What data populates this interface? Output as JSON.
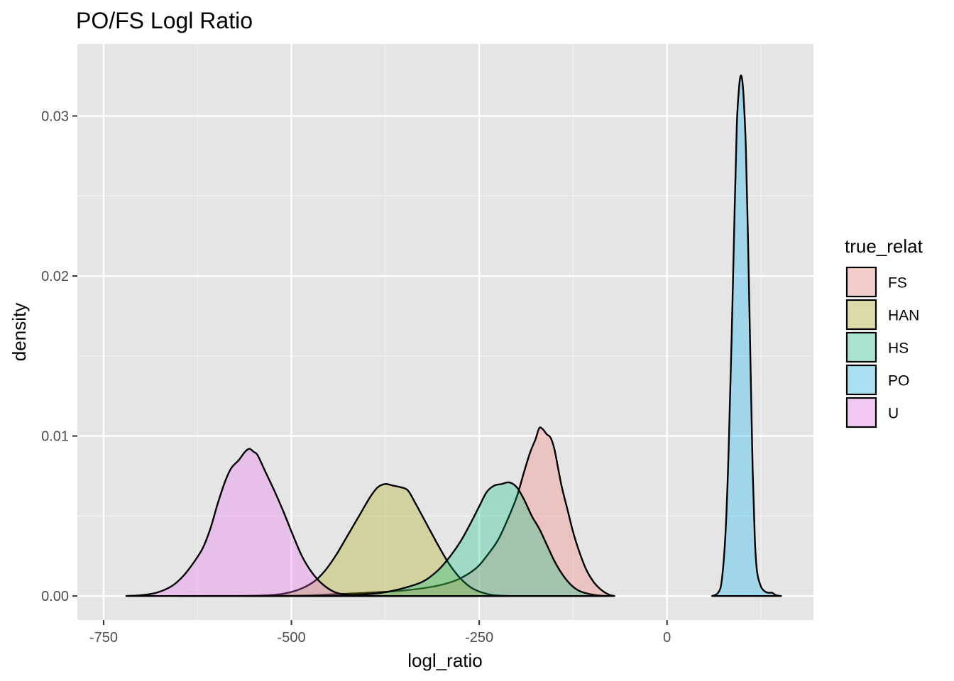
{
  "chart_data": {
    "type": "area",
    "title": "PO/FS Logl Ratio",
    "xlabel": "logl_ratio",
    "ylabel": "density",
    "xlim": [
      -785,
      195
    ],
    "ylim": [
      -0.0015,
      0.0345
    ],
    "x_ticks": [
      -750,
      -500,
      -250,
      0
    ],
    "x_tick_labels": [
      "-750",
      "-500",
      "-250",
      "0"
    ],
    "y_ticks": [
      0.0,
      0.01,
      0.02,
      0.03
    ],
    "y_tick_labels": [
      "0.00",
      "0.01",
      "0.02",
      "0.03"
    ],
    "grid": true,
    "legend": {
      "title": "true_relat",
      "position": "right"
    },
    "series": [
      {
        "name": "FS",
        "color": "#F8766D",
        "points": [
          [
            -650,
            0
          ],
          [
            -500,
            2e-05
          ],
          [
            -450,
            0.0001
          ],
          [
            -400,
            0.0002
          ],
          [
            -350,
            0.00035
          ],
          [
            -310,
            0.0006
          ],
          [
            -280,
            0.001
          ],
          [
            -255,
            0.0017
          ],
          [
            -240,
            0.0025
          ],
          [
            -225,
            0.0035
          ],
          [
            -212,
            0.0048
          ],
          [
            -200,
            0.0062
          ],
          [
            -190,
            0.0078
          ],
          [
            -182,
            0.009
          ],
          [
            -175,
            0.0098
          ],
          [
            -170,
            0.0105
          ],
          [
            -165,
            0.0104
          ],
          [
            -160,
            0.0101
          ],
          [
            -155,
            0.0099
          ],
          [
            -150,
            0.0092
          ],
          [
            -145,
            0.008
          ],
          [
            -140,
            0.0068
          ],
          [
            -133,
            0.0055
          ],
          [
            -125,
            0.004
          ],
          [
            -117,
            0.0028
          ],
          [
            -108,
            0.0017
          ],
          [
            -98,
            0.0009
          ],
          [
            -88,
            0.0004
          ],
          [
            -78,
            0.0001
          ],
          [
            -70,
            0
          ]
        ]
      },
      {
        "name": "HAN",
        "color": "#A3A500",
        "points": [
          [
            -560,
            0
          ],
          [
            -530,
            5e-05
          ],
          [
            -510,
            0.00015
          ],
          [
            -490,
            0.0004
          ],
          [
            -470,
            0.0009
          ],
          [
            -455,
            0.0016
          ],
          [
            -440,
            0.0026
          ],
          [
            -425,
            0.0038
          ],
          [
            -410,
            0.005
          ],
          [
            -395,
            0.0062
          ],
          [
            -385,
            0.0068
          ],
          [
            -375,
            0.007
          ],
          [
            -365,
            0.0069
          ],
          [
            -355,
            0.0068
          ],
          [
            -345,
            0.0066
          ],
          [
            -335,
            0.0058
          ],
          [
            -320,
            0.0045
          ],
          [
            -305,
            0.0032
          ],
          [
            -290,
            0.002
          ],
          [
            -275,
            0.0011
          ],
          [
            -260,
            0.0005
          ],
          [
            -245,
            0.0002
          ],
          [
            -230,
            5e-05
          ],
          [
            -210,
            0
          ]
        ]
      },
      {
        "name": "HS",
        "color": "#00BF7D",
        "points": [
          [
            -470,
            0
          ],
          [
            -420,
            5e-05
          ],
          [
            -380,
            0.0002
          ],
          [
            -350,
            0.0005
          ],
          [
            -325,
            0.0009
          ],
          [
            -305,
            0.0016
          ],
          [
            -290,
            0.0024
          ],
          [
            -275,
            0.0034
          ],
          [
            -262,
            0.0045
          ],
          [
            -250,
            0.0056
          ],
          [
            -240,
            0.0065
          ],
          [
            -230,
            0.0069
          ],
          [
            -220,
            0.007
          ],
          [
            -210,
            0.0071
          ],
          [
            -200,
            0.0068
          ],
          [
            -190,
            0.006
          ],
          [
            -180,
            0.005
          ],
          [
            -170,
            0.0042
          ],
          [
            -160,
            0.0032
          ],
          [
            -150,
            0.0022
          ],
          [
            -140,
            0.0014
          ],
          [
            -130,
            0.0008
          ],
          [
            -120,
            0.0004
          ],
          [
            -110,
            0.0002
          ],
          [
            -95,
            5e-05
          ],
          [
            -80,
            0
          ]
        ]
      },
      {
        "name": "PO",
        "color": "#00B0F6",
        "points": [
          [
            60,
            0
          ],
          [
            68,
            0.0002
          ],
          [
            73,
            0.001
          ],
          [
            78,
            0.004
          ],
          [
            82,
            0.009
          ],
          [
            86,
            0.016
          ],
          [
            90,
            0.024
          ],
          [
            93,
            0.0295
          ],
          [
            96,
            0.0318
          ],
          [
            98,
            0.0325
          ],
          [
            100,
            0.0323
          ],
          [
            102,
            0.0312
          ],
          [
            105,
            0.028
          ],
          [
            108,
            0.022
          ],
          [
            111,
            0.015
          ],
          [
            114,
            0.008
          ],
          [
            117,
            0.0035
          ],
          [
            120,
            0.0015
          ],
          [
            125,
            0.0006
          ],
          [
            130,
            0.0003
          ],
          [
            135,
            0.0002
          ],
          [
            140,
            0.0002
          ],
          [
            145,
            5e-05
          ],
          [
            152,
            0
          ]
        ]
      },
      {
        "name": "U",
        "color": "#E76BF3",
        "points": [
          [
            -720,
            0
          ],
          [
            -700,
            5e-05
          ],
          [
            -680,
            0.0002
          ],
          [
            -660,
            0.0006
          ],
          [
            -645,
            0.0012
          ],
          [
            -630,
            0.0021
          ],
          [
            -618,
            0.003
          ],
          [
            -608,
            0.0042
          ],
          [
            -598,
            0.0058
          ],
          [
            -588,
            0.0072
          ],
          [
            -580,
            0.008
          ],
          [
            -570,
            0.0085
          ],
          [
            -562,
            0.009
          ],
          [
            -556,
            0.0092
          ],
          [
            -550,
            0.009
          ],
          [
            -545,
            0.0088
          ],
          [
            -535,
            0.0078
          ],
          [
            -522,
            0.0065
          ],
          [
            -510,
            0.0052
          ],
          [
            -498,
            0.0038
          ],
          [
            -485,
            0.0024
          ],
          [
            -470,
            0.0013
          ],
          [
            -455,
            0.0006
          ],
          [
            -440,
            0.0002
          ],
          [
            -420,
            5e-05
          ],
          [
            -400,
            0
          ]
        ]
      }
    ]
  }
}
